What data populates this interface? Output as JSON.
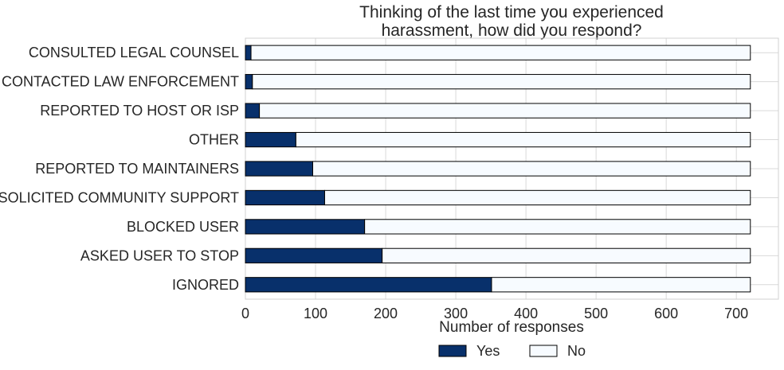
{
  "chart_data": {
    "type": "bar",
    "orientation": "horizontal",
    "stacked": true,
    "title_lines": [
      "Thinking of the last time you experienced",
      "harassment, how did you respond?"
    ],
    "xlabel": "Number of responses",
    "ylabel": "",
    "xlim": [
      0,
      760
    ],
    "xticks": [
      0,
      100,
      200,
      300,
      400,
      500,
      600,
      700
    ],
    "grid": true,
    "legend_position": "bottom-center",
    "categories": [
      "CONSULTED LEGAL COUNSEL",
      "CONTACTED LAW ENFORCEMENT",
      "REPORTED TO HOST OR ISP",
      "OTHER",
      "REPORTED TO MAINTAINERS",
      "SOLICITED COMMUNITY SUPPORT",
      "BLOCKED USER",
      "ASKED USER TO STOP",
      "IGNORED"
    ],
    "series": [
      {
        "name": "Yes",
        "color": "#08306b",
        "values": [
          8,
          10,
          20,
          72,
          96,
          113,
          170,
          195,
          351
        ]
      },
      {
        "name": "No",
        "color": "#f7fbff",
        "values": [
          712,
          710,
          700,
          648,
          624,
          607,
          550,
          525,
          369
        ]
      }
    ]
  }
}
